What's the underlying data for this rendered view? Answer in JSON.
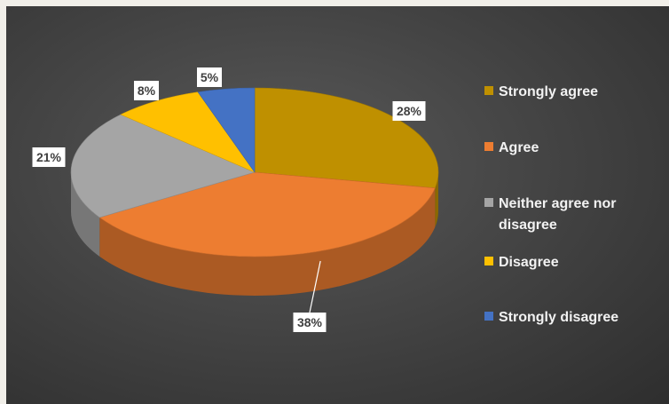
{
  "chart_data": {
    "type": "pie",
    "style": "3d",
    "title": "",
    "categories": [
      "Strongly agree",
      "Agree",
      "Neither agree nor disagree",
      "Disagree",
      "Strongly disagree"
    ],
    "values": [
      28,
      38,
      21,
      8,
      5
    ],
    "labels": [
      "28%",
      "38%",
      "21%",
      "8%",
      "5%"
    ],
    "colors": [
      "#bf9000",
      "#ed7d31",
      "#a5a5a5",
      "#ffc000",
      "#4472c4"
    ],
    "legend": {
      "position": "right",
      "entries": [
        [
          "Strongly agree"
        ],
        [
          "Agree"
        ],
        [
          "Neither agree nor",
          "disagree"
        ],
        [
          "Disagree"
        ],
        [
          "Strongly disagree"
        ]
      ]
    }
  }
}
